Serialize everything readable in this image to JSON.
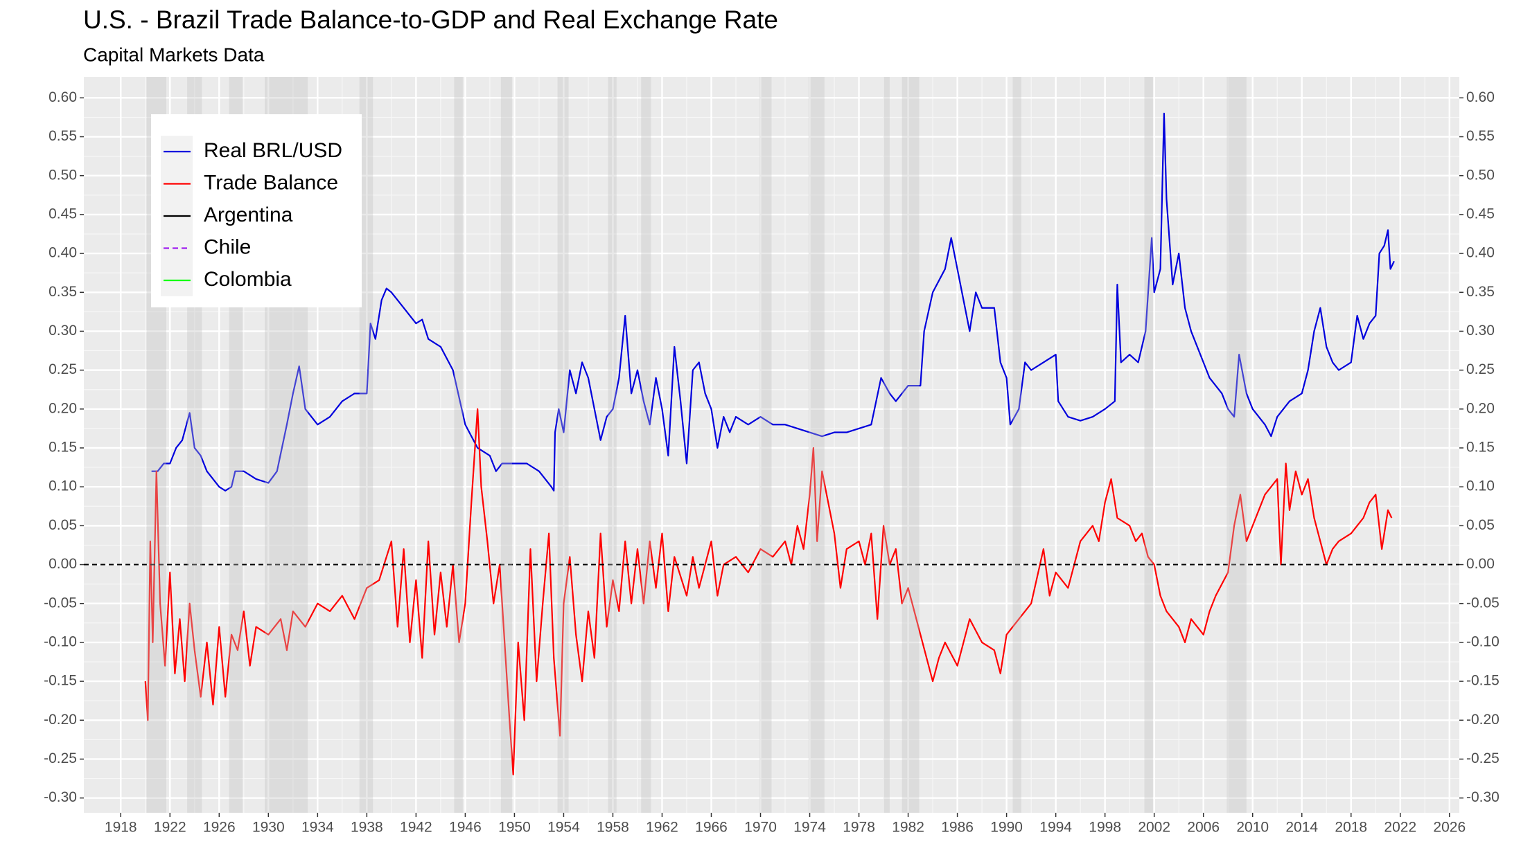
{
  "chart_data": {
    "type": "line",
    "title": "U.S. - Brazil Trade Balance-to-GDP and Real Exchange Rate",
    "subtitle": "Capital Markets Data",
    "xlim": [
      1915,
      2026.8
    ],
    "ylim": [
      -0.319,
      0.627
    ],
    "xticks": [
      1918,
      1922,
      1926,
      1930,
      1934,
      1938,
      1942,
      1946,
      1950,
      1954,
      1958,
      1962,
      1966,
      1970,
      1974,
      1978,
      1982,
      1986,
      1990,
      1994,
      1998,
      2002,
      2006,
      2010,
      2014,
      2018,
      2022,
      2026
    ],
    "yticks": [
      {
        "value": -0.3,
        "label": "-0.30"
      },
      {
        "value": -0.25,
        "label": "-0.25"
      },
      {
        "value": -0.2,
        "label": "-0.20"
      },
      {
        "value": -0.15,
        "label": "-0.15"
      },
      {
        "value": -0.1,
        "label": "-0.10"
      },
      {
        "value": -0.05,
        "label": "-0.05"
      },
      {
        "value": 0,
        "label": "0.00"
      },
      {
        "value": 0.05,
        "label": "0.05"
      },
      {
        "value": 0.1,
        "label": "0.10"
      },
      {
        "value": 0.15,
        "label": "0.15"
      },
      {
        "value": 0.2,
        "label": "0.20"
      },
      {
        "value": 0.25,
        "label": "0.25"
      },
      {
        "value": 0.3,
        "label": "0.30"
      },
      {
        "value": 0.35,
        "label": "0.35"
      },
      {
        "value": 0.4,
        "label": "0.40"
      },
      {
        "value": 0.45,
        "label": "0.45"
      },
      {
        "value": 0.5,
        "label": "0.50"
      },
      {
        "value": 0.55,
        "label": "0.55"
      },
      {
        "value": 0.6,
        "label": "0.60"
      }
    ],
    "right_axis": true,
    "grid": true,
    "hline": 0,
    "legend": "top-left",
    "shaded_periods": [
      [
        1920.1,
        1921.7
      ],
      [
        1923.4,
        1924.6
      ],
      [
        1926.8,
        1927.9
      ],
      [
        1929.7,
        1933.2
      ],
      [
        1937.4,
        1938.5
      ],
      [
        1945.1,
        1945.8
      ],
      [
        1948.9,
        1949.8
      ],
      [
        1953.5,
        1954.4
      ],
      [
        1957.6,
        1958.3
      ],
      [
        1960.3,
        1961.1
      ],
      [
        1969.9,
        1970.9
      ],
      [
        1973.9,
        1975.2
      ],
      [
        1980.0,
        1980.5
      ],
      [
        1981.5,
        1982.9
      ],
      [
        1990.5,
        1991.2
      ],
      [
        2001.2,
        2001.9
      ],
      [
        2007.9,
        2009.5
      ]
    ],
    "series": [
      {
        "name": "Real BRL/USD",
        "color": "#0000dd",
        "x": [
          1920.5,
          1921,
          1921.5,
          1922,
          1922.5,
          1923,
          1923.6,
          1924,
          1924.5,
          1925,
          1925.5,
          1926,
          1926.5,
          1927,
          1927.3,
          1928,
          1929,
          1930,
          1930.7,
          1931.5,
          1932,
          1932.5,
          1933,
          1934,
          1935,
          1936,
          1937,
          1938,
          1938.3,
          1938.7,
          1939.2,
          1939.6,
          1940,
          1941,
          1942,
          1942.5,
          1943,
          1944,
          1945,
          1946,
          1947,
          1948,
          1948.5,
          1949,
          1950,
          1951,
          1952,
          1953,
          1953.2,
          1953.3,
          1953.6,
          1954,
          1954.5,
          1955,
          1955.5,
          1956,
          1956.5,
          1957,
          1957.5,
          1958,
          1958.5,
          1959,
          1959.5,
          1960,
          1960.5,
          1961,
          1961.5,
          1962,
          1962.5,
          1963,
          1963.5,
          1964,
          1964.5,
          1965,
          1965.5,
          1966,
          1966.5,
          1967,
          1967.5,
          1968,
          1969,
          1970,
          1971,
          1972,
          1973,
          1974,
          1975,
          1976,
          1977,
          1978,
          1979,
          1979.8,
          1980.5,
          1981,
          1982,
          1983,
          1983.3,
          1984,
          1985,
          1985.5,
          1986,
          1986.5,
          1987,
          1987.5,
          1988,
          1989,
          1989.5,
          1990,
          1990.3,
          1991,
          1991.5,
          1992,
          1993,
          1994,
          1994.2,
          1995,
          1996,
          1997,
          1998,
          1998.8,
          1999,
          1999.3,
          2000,
          2000.7,
          2001.3,
          2001.8,
          2002,
          2002.5,
          2002.8,
          2003,
          2003.5,
          2004,
          2004.5,
          2005,
          2005.5,
          2006,
          2006.5,
          2007,
          2007.5,
          2008,
          2008.5,
          2008.9,
          2009.5,
          2010,
          2011,
          2011.5,
          2012,
          2013,
          2014,
          2014.5,
          2015,
          2015.5,
          2016,
          2016.5,
          2017,
          2018,
          2018.5,
          2019,
          2019.5,
          2020,
          2020.3,
          2020.7,
          2021,
          2021.2,
          2021.5
        ],
        "values": [
          0.12,
          0.12,
          0.13,
          0.13,
          0.15,
          0.16,
          0.195,
          0.15,
          0.14,
          0.12,
          0.11,
          0.1,
          0.095,
          0.1,
          0.12,
          0.12,
          0.11,
          0.105,
          0.12,
          0.18,
          0.22,
          0.255,
          0.2,
          0.18,
          0.19,
          0.21,
          0.22,
          0.22,
          0.31,
          0.29,
          0.34,
          0.355,
          0.35,
          0.33,
          0.31,
          0.315,
          0.29,
          0.28,
          0.25,
          0.18,
          0.15,
          0.14,
          0.12,
          0.13,
          0.13,
          0.13,
          0.12,
          0.1,
          0.095,
          0.17,
          0.2,
          0.17,
          0.25,
          0.22,
          0.26,
          0.24,
          0.2,
          0.16,
          0.19,
          0.2,
          0.24,
          0.32,
          0.22,
          0.25,
          0.21,
          0.18,
          0.24,
          0.2,
          0.14,
          0.28,
          0.21,
          0.13,
          0.25,
          0.26,
          0.22,
          0.2,
          0.15,
          0.19,
          0.17,
          0.19,
          0.18,
          0.19,
          0.18,
          0.18,
          0.175,
          0.17,
          0.165,
          0.17,
          0.17,
          0.175,
          0.18,
          0.24,
          0.22,
          0.21,
          0.23,
          0.23,
          0.3,
          0.35,
          0.38,
          0.42,
          0.38,
          0.34,
          0.3,
          0.35,
          0.33,
          0.33,
          0.26,
          0.24,
          0.18,
          0.2,
          0.26,
          0.25,
          0.26,
          0.27,
          0.21,
          0.19,
          0.185,
          0.19,
          0.2,
          0.21,
          0.36,
          0.26,
          0.27,
          0.26,
          0.3,
          0.42,
          0.35,
          0.38,
          0.58,
          0.47,
          0.36,
          0.4,
          0.33,
          0.3,
          0.28,
          0.26,
          0.24,
          0.23,
          0.22,
          0.2,
          0.19,
          0.27,
          0.22,
          0.2,
          0.18,
          0.165,
          0.19,
          0.21,
          0.22,
          0.25,
          0.3,
          0.33,
          0.28,
          0.26,
          0.25,
          0.26,
          0.32,
          0.29,
          0.31,
          0.32,
          0.4,
          0.41,
          0.43,
          0.38,
          0.39
        ]
      },
      {
        "name": "Trade Balance",
        "color": "#ff0000",
        "x": [
          1920,
          1920.2,
          1920.4,
          1920.6,
          1920.9,
          1921.2,
          1921.6,
          1922,
          1922.4,
          1922.8,
          1923.2,
          1923.6,
          1924,
          1924.5,
          1925,
          1925.5,
          1926,
          1926.5,
          1927,
          1927.5,
          1928,
          1928.5,
          1929,
          1930,
          1931,
          1931.5,
          1932,
          1933,
          1934,
          1935,
          1936,
          1937,
          1938,
          1939,
          1940,
          1940.5,
          1941,
          1941.5,
          1942,
          1942.5,
          1943,
          1943.5,
          1944,
          1944.5,
          1945,
          1945.5,
          1946,
          1946.5,
          1947,
          1947.3,
          1947.8,
          1948.3,
          1948.8,
          1949.2,
          1949.6,
          1949.9,
          1950.3,
          1950.8,
          1951.3,
          1951.8,
          1952.3,
          1952.8,
          1953.2,
          1953.7,
          1954,
          1954.5,
          1955,
          1955.5,
          1956,
          1956.5,
          1957,
          1957.5,
          1958,
          1958.5,
          1959,
          1959.5,
          1960,
          1960.5,
          1961,
          1961.5,
          1962,
          1962.5,
          1963,
          1964,
          1964.5,
          1965,
          1966,
          1966.5,
          1967,
          1968,
          1969,
          1970,
          1971,
          1972,
          1972.5,
          1973,
          1973.5,
          1974,
          1974.3,
          1974.6,
          1975,
          1975.5,
          1976,
          1976.5,
          1977,
          1978,
          1978.5,
          1979,
          1979.5,
          1980,
          1980.5,
          1981,
          1981.5,
          1982,
          1983,
          1984,
          1984.5,
          1985,
          1986,
          1987,
          1988,
          1989,
          1989.5,
          1990,
          1991,
          1992,
          1993,
          1993.5,
          1994,
          1995,
          1996,
          1997,
          1997.5,
          1998,
          1998.5,
          1999,
          2000,
          2000.5,
          2001,
          2001.5,
          2002,
          2002.5,
          2003,
          2004,
          2004.5,
          2005,
          2006,
          2006.5,
          2007,
          2008,
          2008.5,
          2009,
          2009.5,
          2010,
          2011,
          2012,
          2012.3,
          2012.7,
          2013,
          2013.5,
          2014,
          2014.5,
          2015,
          2015.5,
          2016,
          2016.5,
          2017,
          2018,
          2018.5,
          2019,
          2019.5,
          2020,
          2020.5,
          2021,
          2021.3
        ],
        "values": [
          -0.15,
          -0.2,
          0.03,
          -0.1,
          0.12,
          -0.05,
          -0.13,
          -0.01,
          -0.14,
          -0.07,
          -0.15,
          -0.05,
          -0.11,
          -0.17,
          -0.1,
          -0.18,
          -0.08,
          -0.17,
          -0.09,
          -0.11,
          -0.06,
          -0.13,
          -0.08,
          -0.09,
          -0.07,
          -0.11,
          -0.06,
          -0.08,
          -0.05,
          -0.06,
          -0.04,
          -0.07,
          -0.03,
          -0.02,
          0.03,
          -0.08,
          0.02,
          -0.1,
          -0.02,
          -0.12,
          0.03,
          -0.09,
          -0.01,
          -0.08,
          0.0,
          -0.1,
          -0.05,
          0.08,
          0.2,
          0.1,
          0.03,
          -0.05,
          0.0,
          -0.1,
          -0.2,
          -0.27,
          -0.1,
          -0.2,
          0.02,
          -0.15,
          -0.05,
          0.04,
          -0.12,
          -0.22,
          -0.05,
          0.01,
          -0.09,
          -0.15,
          -0.06,
          -0.12,
          0.04,
          -0.08,
          -0.02,
          -0.06,
          0.03,
          -0.05,
          0.02,
          -0.05,
          0.03,
          -0.03,
          0.04,
          -0.06,
          0.01,
          -0.04,
          0.01,
          -0.03,
          0.03,
          -0.04,
          0.0,
          0.01,
          -0.01,
          0.02,
          0.01,
          0.03,
          0.0,
          0.05,
          0.02,
          0.09,
          0.15,
          0.03,
          0.12,
          0.08,
          0.04,
          -0.03,
          0.02,
          0.03,
          0.0,
          0.04,
          -0.07,
          0.05,
          0.0,
          0.02,
          -0.05,
          -0.03,
          -0.09,
          -0.15,
          -0.12,
          -0.1,
          -0.13,
          -0.07,
          -0.1,
          -0.11,
          -0.14,
          -0.09,
          -0.07,
          -0.05,
          0.02,
          -0.04,
          -0.01,
          -0.03,
          0.03,
          0.05,
          0.03,
          0.08,
          0.11,
          0.06,
          0.05,
          0.03,
          0.04,
          0.01,
          0.0,
          -0.04,
          -0.06,
          -0.08,
          -0.1,
          -0.07,
          -0.09,
          -0.06,
          -0.04,
          -0.01,
          0.05,
          0.09,
          0.03,
          0.05,
          0.09,
          0.11,
          0.0,
          0.13,
          0.07,
          0.12,
          0.09,
          0.11,
          0.06,
          0.03,
          0.0,
          0.02,
          0.03,
          0.04,
          0.05,
          0.06,
          0.08,
          0.09,
          0.02,
          0.07,
          0.06
        ]
      },
      {
        "name": "Argentina",
        "color": "#000000",
        "x": [],
        "values": []
      },
      {
        "name": "Chile",
        "color": "#a020f0",
        "dash": true,
        "x": [],
        "values": []
      },
      {
        "name": "Colombia",
        "color": "#00ff00",
        "x": [],
        "values": []
      }
    ]
  }
}
